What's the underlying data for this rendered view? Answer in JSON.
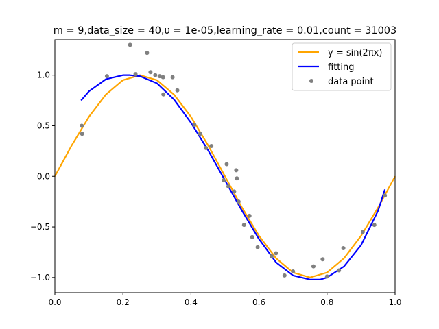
{
  "chart_data": {
    "type": "line",
    "title": "m = 9,data_size = 40,υ = 1e-05,learning_rate = 0.01,count = 31003",
    "xlabel": "",
    "ylabel": "",
    "xlim": [
      0.0,
      1.0
    ],
    "ylim": [
      -1.15,
      1.35
    ],
    "x_ticks": [
      0.0,
      0.2,
      0.4,
      0.6,
      0.8,
      1.0
    ],
    "x_tick_labels": [
      "0.0",
      "0.2",
      "0.4",
      "0.6",
      "0.8",
      "1.0"
    ],
    "y_ticks": [
      -1.0,
      -0.5,
      0.0,
      0.5,
      1.0
    ],
    "y_tick_labels": [
      "−1.0",
      "−0.5",
      "0.0",
      "0.5",
      "1.0"
    ],
    "grid": false,
    "legend_position": "top-right",
    "colors": {
      "true_curve": "#ffa500",
      "fitting": "#0000ff",
      "points": "#808080"
    },
    "series": [
      {
        "name": "y = sin(2πx)",
        "kind": "line",
        "x": [
          0.0,
          0.05,
          0.1,
          0.15,
          0.2,
          0.25,
          0.3,
          0.35,
          0.4,
          0.45,
          0.5,
          0.55,
          0.6,
          0.65,
          0.7,
          0.75,
          0.8,
          0.85,
          0.9,
          0.95,
          1.0
        ],
        "y": [
          0.0,
          0.309,
          0.588,
          0.809,
          0.951,
          1.0,
          0.951,
          0.809,
          0.588,
          0.309,
          0.0,
          -0.309,
          -0.588,
          -0.809,
          -0.951,
          -1.0,
          -0.951,
          -0.809,
          -0.588,
          -0.309,
          0.0
        ]
      },
      {
        "name": "fitting",
        "kind": "line",
        "x": [
          0.077,
          0.1,
          0.15,
          0.2,
          0.22,
          0.25,
          0.3,
          0.35,
          0.4,
          0.45,
          0.5,
          0.55,
          0.6,
          0.65,
          0.7,
          0.75,
          0.78,
          0.8,
          0.85,
          0.9,
          0.95,
          0.97
        ],
        "y": [
          0.75,
          0.84,
          0.96,
          1.0,
          1.0,
          0.99,
          0.92,
          0.76,
          0.53,
          0.26,
          -0.04,
          -0.34,
          -0.62,
          -0.85,
          -0.98,
          -1.02,
          -1.02,
          -1.0,
          -0.89,
          -0.68,
          -0.34,
          -0.13
        ]
      },
      {
        "name": "data point",
        "kind": "scatter",
        "x": [
          0.079,
          0.08,
          0.153,
          0.221,
          0.237,
          0.271,
          0.281,
          0.295,
          0.308,
          0.318,
          0.319,
          0.346,
          0.36,
          0.41,
          0.427,
          0.444,
          0.496,
          0.505,
          0.527,
          0.533,
          0.535,
          0.54,
          0.556,
          0.572,
          0.596,
          0.637,
          0.65,
          0.675,
          0.7,
          0.76,
          0.787,
          0.8,
          0.835,
          0.848,
          0.905,
          0.939,
          0.97,
          0.51,
          0.46,
          0.58
        ],
        "y": [
          0.5,
          0.42,
          0.99,
          1.3,
          1.01,
          1.22,
          1.03,
          1.0,
          0.99,
          0.98,
          0.81,
          0.98,
          0.85,
          0.51,
          0.42,
          0.28,
          -0.04,
          0.12,
          -0.15,
          0.06,
          -0.02,
          -0.25,
          -0.48,
          -0.39,
          -0.7,
          -0.79,
          -0.76,
          -0.98,
          -0.94,
          -0.89,
          -0.82,
          -0.99,
          -0.93,
          -0.71,
          -0.55,
          -0.48,
          -0.19,
          -0.1,
          0.3,
          -0.6
        ]
      }
    ]
  }
}
